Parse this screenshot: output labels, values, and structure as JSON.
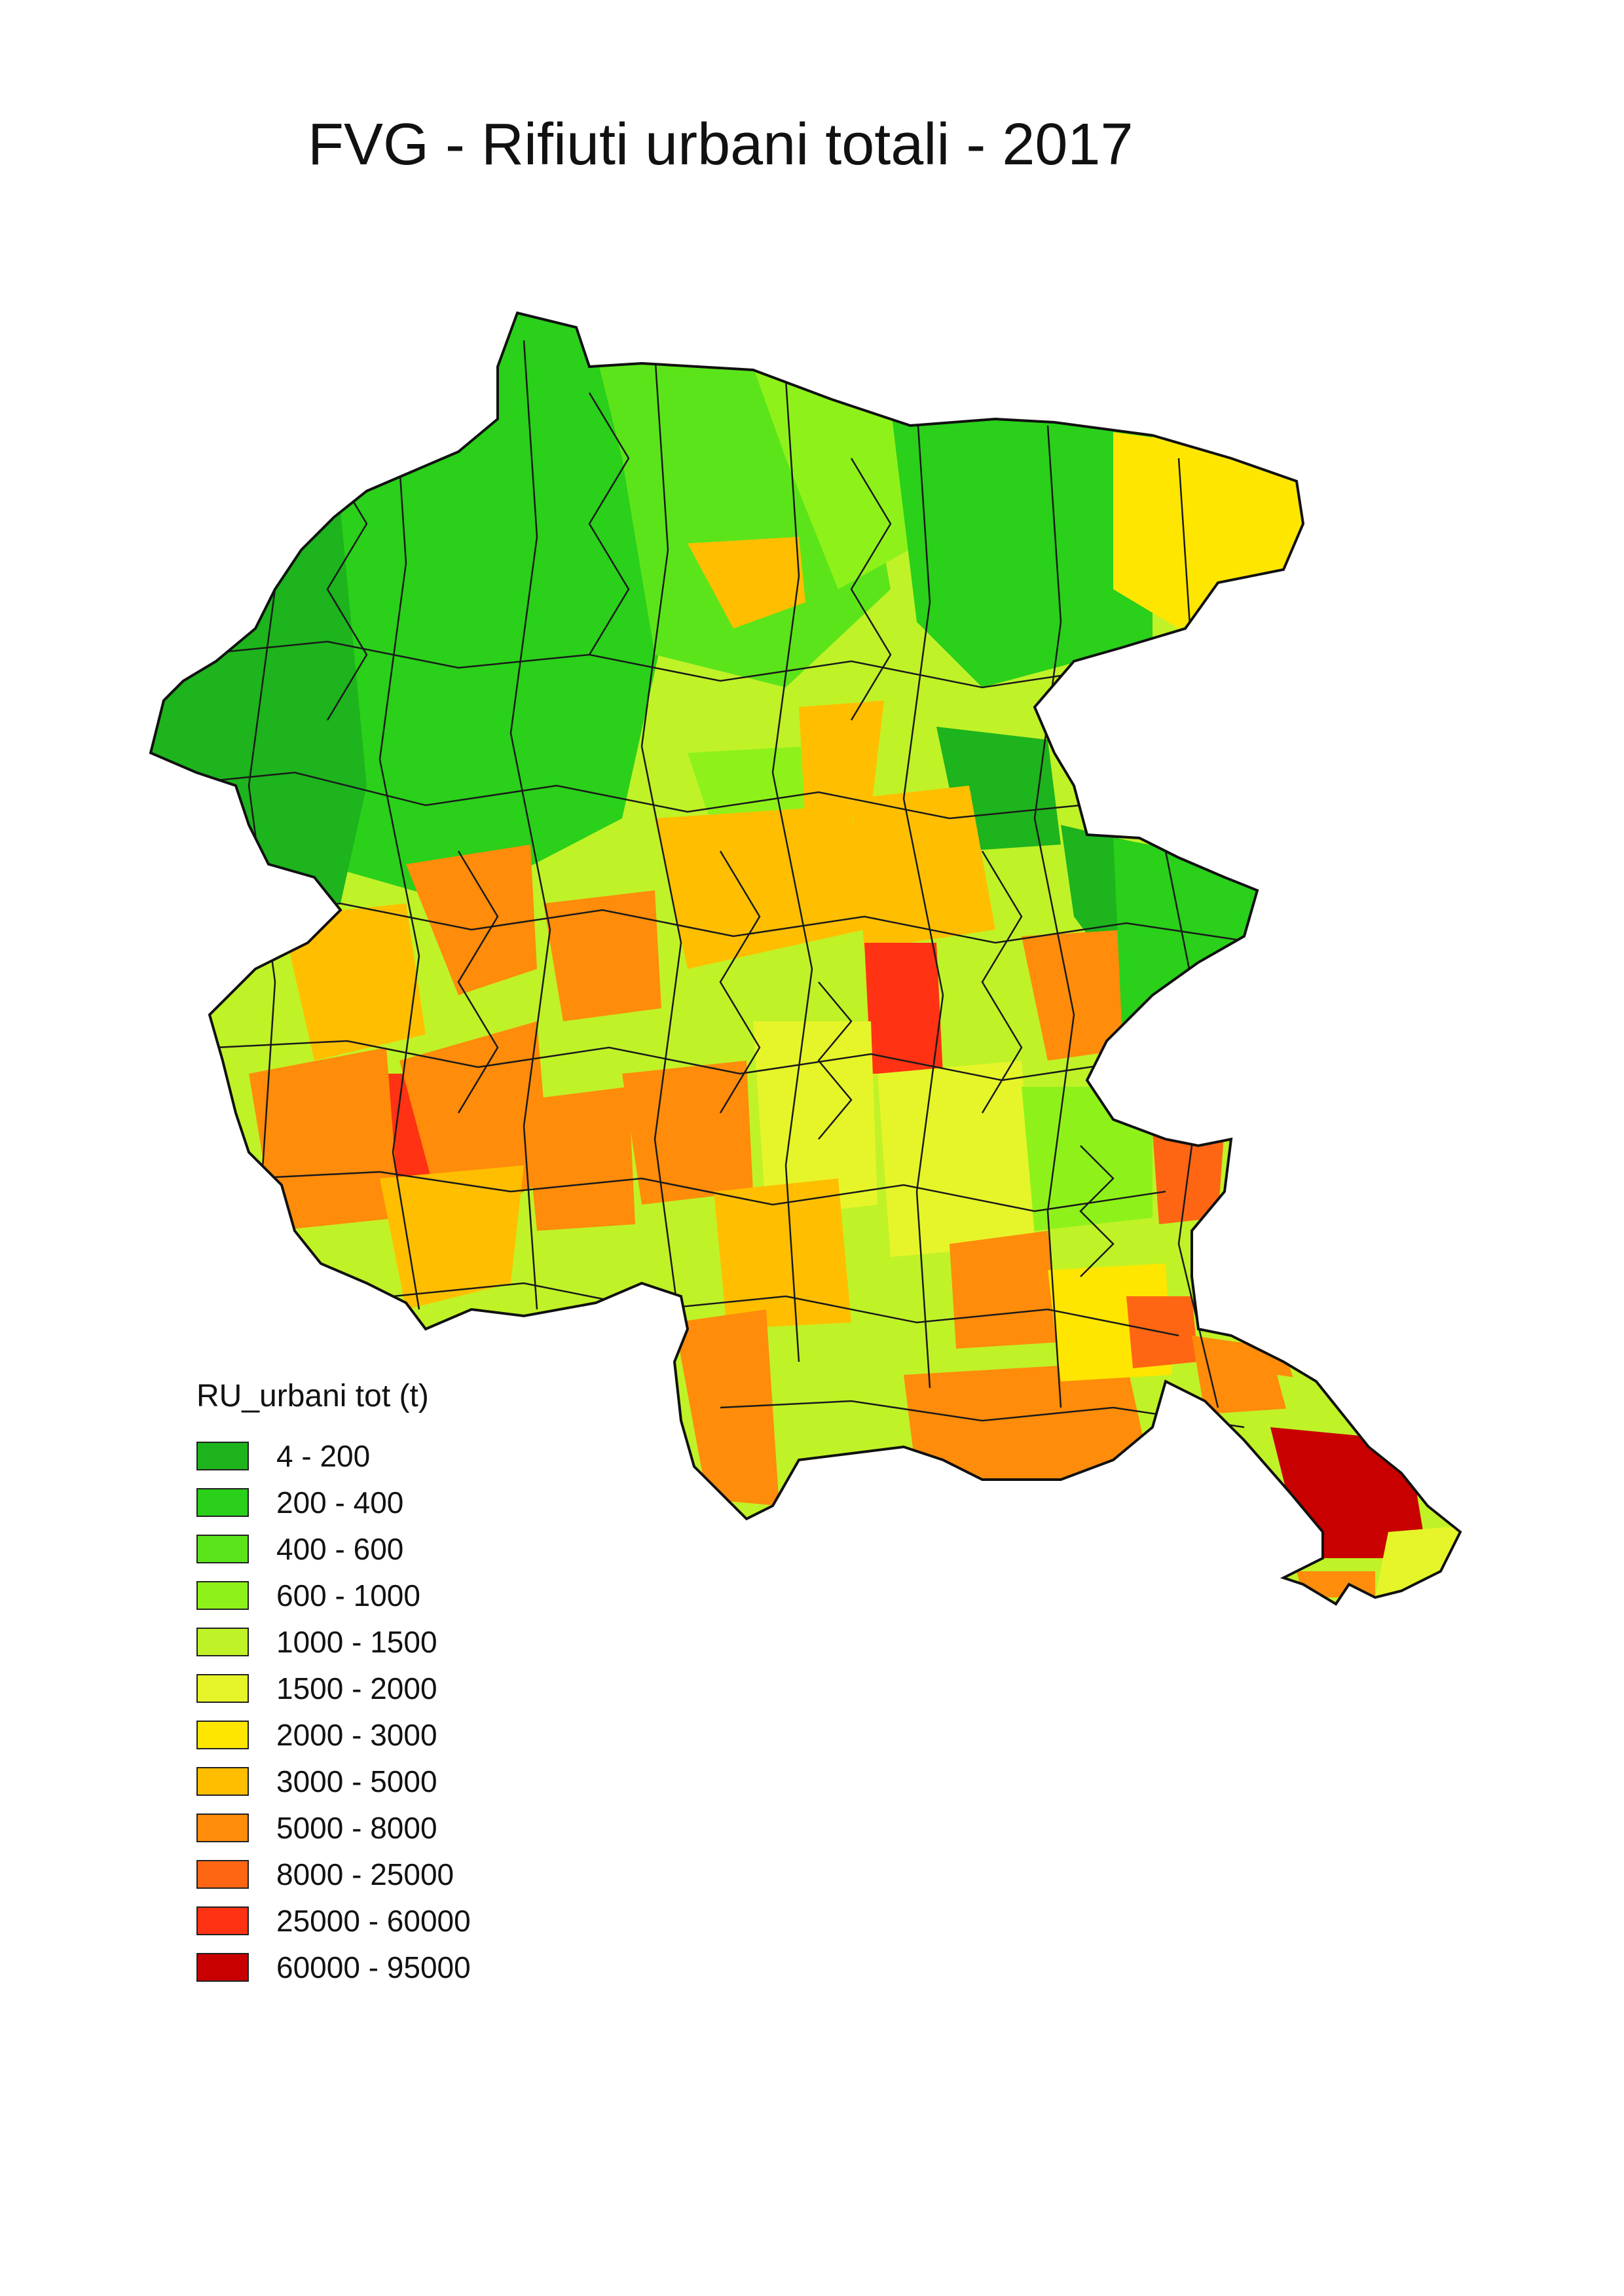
{
  "title": "FVG - Rifiuti urbani totali - 2017",
  "legend": {
    "title": "RU_urbani tot (t)",
    "classes": [
      {
        "label": "4 - 200",
        "color": "#1db41d"
      },
      {
        "label": "200 - 400",
        "color": "#2ad01a"
      },
      {
        "label": "400 - 600",
        "color": "#5ce41a"
      },
      {
        "label": "600 - 1000",
        "color": "#8ef21a"
      },
      {
        "label": "1000 - 1500",
        "color": "#c0f228"
      },
      {
        "label": "1500 - 2000",
        "color": "#e6f52a"
      },
      {
        "label": "2000 - 3000",
        "color": "#ffe600"
      },
      {
        "label": "3000 - 5000",
        "color": "#ffbf00"
      },
      {
        "label": "5000 - 8000",
        "color": "#ff8c0a"
      },
      {
        "label": "8000 - 25000",
        "color": "#ff6614"
      },
      {
        "label": "25000 - 60000",
        "color": "#ff3214"
      },
      {
        "label": "60000 - 95000",
        "color": "#c80000"
      }
    ]
  }
}
